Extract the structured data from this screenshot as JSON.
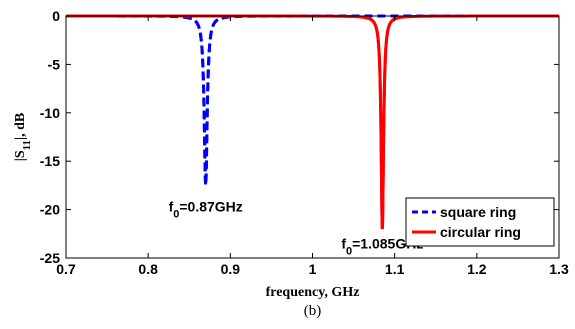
{
  "chart_data": {
    "type": "line",
    "xlabel": "frequency, GHz",
    "ylabel_main": "|S",
    "ylabel_sub": "11",
    "ylabel_tail": "|, dB",
    "panel_label": "(b)",
    "xlim": [
      0.7,
      1.3
    ],
    "ylim": [
      -25,
      0
    ],
    "xticks": [
      "0.7",
      "0.8",
      "0.9",
      "1",
      "1.1",
      "1.2",
      "1.3"
    ],
    "yticks": [
      "0",
      "-5",
      "-10",
      "-15",
      "-20",
      "-25"
    ],
    "legend_position": "lower-right",
    "series": [
      {
        "name": "square ring",
        "color": "#0000ff",
        "style": "dashed",
        "f0": 0.87,
        "min_db": -17.5,
        "width": 0.0022
      },
      {
        "name": "circular ring",
        "color": "#ff0000",
        "style": "solid",
        "f0": 1.085,
        "min_db": -22.0,
        "width": 0.0018
      }
    ],
    "annotations": [
      {
        "base": "f",
        "sub": "0",
        "tail": "=0.87GHz",
        "x": 0.87,
        "y": -20.2
      },
      {
        "base": "f",
        "sub": "0",
        "tail": "=1.085GHz",
        "x": 1.085,
        "y": -24.0
      }
    ]
  }
}
